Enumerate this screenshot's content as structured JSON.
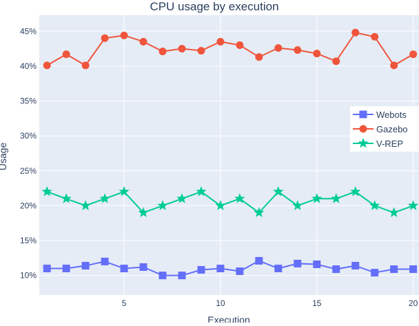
{
  "chart_data": {
    "type": "line",
    "title": "CPU usage by execution",
    "xlabel": "Execution",
    "ylabel": "Usage",
    "x": [
      1,
      2,
      3,
      4,
      5,
      6,
      7,
      8,
      9,
      10,
      11,
      12,
      13,
      14,
      15,
      16,
      17,
      18,
      19,
      20
    ],
    "xlim": [
      0.6,
      20.3
    ],
    "ylim": [
      7.2,
      47.3
    ],
    "x_ticks": [
      5,
      10,
      15,
      20
    ],
    "x_tick_labels": [
      "5",
      "10",
      "15",
      "20"
    ],
    "y_ticks": [
      10,
      15,
      20,
      25,
      30,
      35,
      40,
      45
    ],
    "y_tick_labels": [
      "10%",
      "15%",
      "20%",
      "25%",
      "30%",
      "35%",
      "40%",
      "45%"
    ],
    "grid": true,
    "legend_position": "right",
    "background_color": "#e5ecf6",
    "grid_color": "#ffffff",
    "series": [
      {
        "name": "Webots",
        "marker": "square",
        "color": "#636efa",
        "values": [
          11.0,
          11.0,
          11.4,
          12.0,
          11.0,
          11.2,
          10.0,
          10.0,
          10.8,
          11.0,
          10.6,
          12.1,
          11.0,
          11.7,
          11.6,
          10.9,
          11.4,
          10.4,
          10.9,
          10.9
        ]
      },
      {
        "name": "Gazebo",
        "marker": "circle",
        "color": "#ef553b",
        "values": [
          40.1,
          41.7,
          40.1,
          44.0,
          44.4,
          43.5,
          42.1,
          42.5,
          42.2,
          43.5,
          43.0,
          41.3,
          42.6,
          42.3,
          41.8,
          40.7,
          44.8,
          44.2,
          40.1,
          41.7
        ]
      },
      {
        "name": "V-REP",
        "marker": "star",
        "color": "#00cc96",
        "values": [
          22,
          21,
          20,
          21,
          22,
          19,
          20,
          21,
          22,
          20,
          21,
          19,
          22,
          20,
          21,
          21,
          22,
          20,
          19,
          20
        ]
      }
    ]
  }
}
